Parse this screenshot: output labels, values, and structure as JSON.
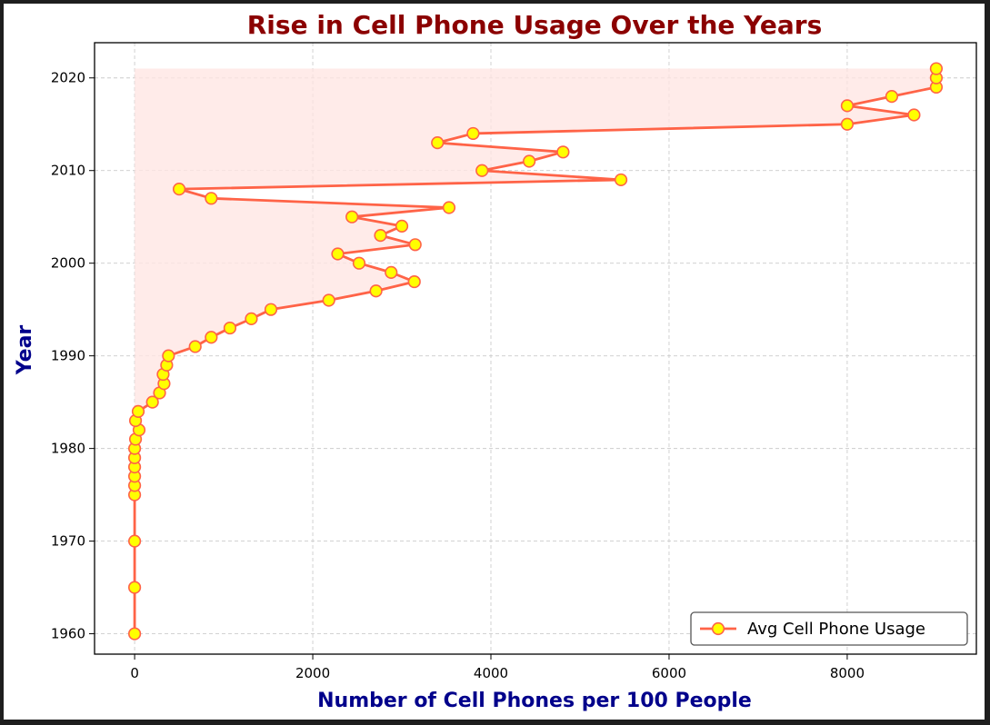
{
  "chart_data": {
    "type": "line",
    "title": "Rise in Cell Phone Usage Over the Years",
    "xlabel": "Number of Cell Phones per 100 People",
    "ylabel": "Year",
    "xlim": [
      -450,
      9450
    ],
    "ylim": [
      1957.8,
      2023.8
    ],
    "xticks": [
      0,
      2000,
      4000,
      6000,
      8000
    ],
    "yticks": [
      1960,
      1970,
      1980,
      1990,
      2000,
      2010,
      2020
    ],
    "grid": true,
    "legend_position": "lower-right",
    "series": [
      {
        "name": "Avg Cell Phone Usage",
        "fill_area": true,
        "points": [
          {
            "x": 0,
            "y": 1960
          },
          {
            "x": 0,
            "y": 1965
          },
          {
            "x": 0,
            "y": 1970
          },
          {
            "x": 0,
            "y": 1975
          },
          {
            "x": 0,
            "y": 1976
          },
          {
            "x": 0,
            "y": 1977
          },
          {
            "x": 0,
            "y": 1978
          },
          {
            "x": 0,
            "y": 1979
          },
          {
            "x": 0,
            "y": 1980
          },
          {
            "x": 10,
            "y": 1981
          },
          {
            "x": 50,
            "y": 1982
          },
          {
            "x": 10,
            "y": 1983
          },
          {
            "x": 40,
            "y": 1984
          },
          {
            "x": 200,
            "y": 1985
          },
          {
            "x": 280,
            "y": 1986
          },
          {
            "x": 330,
            "y": 1987
          },
          {
            "x": 320,
            "y": 1988
          },
          {
            "x": 360,
            "y": 1989
          },
          {
            "x": 380,
            "y": 1990
          },
          {
            "x": 680,
            "y": 1991
          },
          {
            "x": 860,
            "y": 1992
          },
          {
            "x": 1070,
            "y": 1993
          },
          {
            "x": 1310,
            "y": 1994
          },
          {
            "x": 1530,
            "y": 1995
          },
          {
            "x": 2180,
            "y": 1996
          },
          {
            "x": 2710,
            "y": 1997
          },
          {
            "x": 3140,
            "y": 1998
          },
          {
            "x": 2880,
            "y": 1999
          },
          {
            "x": 2520,
            "y": 2000
          },
          {
            "x": 2280,
            "y": 2001
          },
          {
            "x": 3150,
            "y": 2002
          },
          {
            "x": 2760,
            "y": 2003
          },
          {
            "x": 3000,
            "y": 2004
          },
          {
            "x": 2440,
            "y": 2005
          },
          {
            "x": 3530,
            "y": 2006
          },
          {
            "x": 860,
            "y": 2007
          },
          {
            "x": 500,
            "y": 2008
          },
          {
            "x": 5460,
            "y": 2009
          },
          {
            "x": 3900,
            "y": 2010
          },
          {
            "x": 4430,
            "y": 2011
          },
          {
            "x": 4810,
            "y": 2012
          },
          {
            "x": 3400,
            "y": 2013
          },
          {
            "x": 3800,
            "y": 2014
          },
          {
            "x": 8000,
            "y": 2015
          },
          {
            "x": 8750,
            "y": 2016
          },
          {
            "x": 8000,
            "y": 2017
          },
          {
            "x": 8500,
            "y": 2018
          },
          {
            "x": 9000,
            "y": 2019
          },
          {
            "x": 9000,
            "y": 2020
          },
          {
            "x": 9000,
            "y": 2021
          }
        ]
      }
    ],
    "colors": {
      "title": "#8b0000",
      "axis_label": "#00008b",
      "line": "#ff6347",
      "marker_fill": "#ffff00",
      "marker_edge": "#ff6347",
      "fill": "#ffe4e1",
      "grid": "#cccccc"
    }
  }
}
